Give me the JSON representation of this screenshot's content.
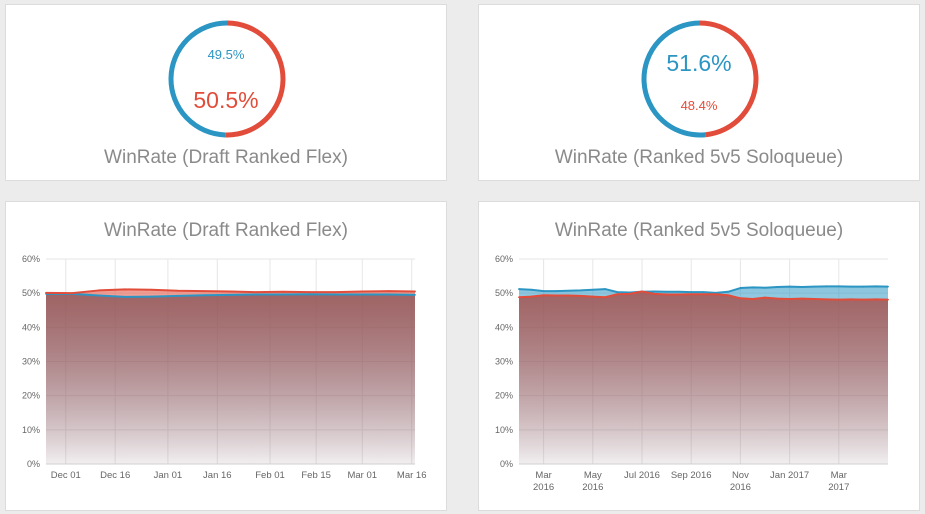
{
  "colors": {
    "blue": "#2b95c3",
    "red": "#e24c3a",
    "title": "#8a8a8a",
    "grid": "#e6e6e6",
    "axis_text": "#666666"
  },
  "donuts": [
    {
      "title": "WinRate (Draft Ranked Flex)",
      "blue_label": "49.5%",
      "red_label": "50.5%",
      "blue_value": 49.5,
      "red_value": 50.5,
      "emphasis": "red"
    },
    {
      "title": "WinRate (Ranked 5v5 Soloqueue)",
      "blue_label": "51.6%",
      "red_label": "48.4%",
      "blue_value": 51.6,
      "red_value": 48.4,
      "emphasis": "blue"
    }
  ],
  "chart_data": [
    {
      "type": "area",
      "title": "WinRate (Draft Ranked Flex)",
      "xlabel": "",
      "ylabel": "",
      "ylim": [
        0,
        60
      ],
      "y_ticks": [
        0,
        10,
        20,
        30,
        40,
        50,
        60
      ],
      "y_tick_labels": [
        "0%",
        "10%",
        "20%",
        "30%",
        "40%",
        "50%",
        "60%"
      ],
      "x_range": [
        0,
        112
      ],
      "x_ticks": [
        {
          "x": 6,
          "lines": [
            "Dec 01"
          ]
        },
        {
          "x": 21,
          "lines": [
            "Dec 16"
          ]
        },
        {
          "x": 37,
          "lines": [
            "Jan 01"
          ]
        },
        {
          "x": 52,
          "lines": [
            "Jan 16"
          ]
        },
        {
          "x": 68,
          "lines": [
            "Feb 01"
          ]
        },
        {
          "x": 82,
          "lines": [
            "Feb 15"
          ]
        },
        {
          "x": 96,
          "lines": [
            "Mar 01"
          ]
        },
        {
          "x": 111,
          "lines": [
            "Mar 16"
          ]
        }
      ],
      "grid": true,
      "legend": "none",
      "series": [
        {
          "color": "#2b95c3",
          "x": [
            0,
            8,
            16,
            24,
            32,
            40,
            48,
            56,
            64,
            72,
            80,
            88,
            96,
            104,
            112
          ],
          "values": [
            49.8,
            49.8,
            49.3,
            48.9,
            49.0,
            49.2,
            49.4,
            49.5,
            49.6,
            49.6,
            49.7,
            49.6,
            49.6,
            49.6,
            49.5
          ]
        },
        {
          "color": "#e24c3a",
          "x": [
            0,
            8,
            16,
            24,
            32,
            40,
            48,
            56,
            64,
            72,
            80,
            88,
            96,
            104,
            112
          ],
          "values": [
            50.1,
            50.0,
            50.8,
            51.1,
            51.0,
            50.7,
            50.6,
            50.5,
            50.3,
            50.4,
            50.3,
            50.3,
            50.5,
            50.6,
            50.5
          ]
        }
      ]
    },
    {
      "type": "area",
      "title": "WinRate (Ranked 5v5 Soloqueue)",
      "xlabel": "",
      "ylabel": "",
      "ylim": [
        0,
        60
      ],
      "y_ticks": [
        0,
        10,
        20,
        30,
        40,
        50,
        60
      ],
      "y_tick_labels": [
        "0%",
        "10%",
        "20%",
        "30%",
        "40%",
        "50%",
        "60%"
      ],
      "x_range": [
        0,
        15
      ],
      "x_ticks": [
        {
          "x": 1,
          "lines": [
            "Mar",
            "2016"
          ]
        },
        {
          "x": 3,
          "lines": [
            "May",
            "2016"
          ]
        },
        {
          "x": 5,
          "lines": [
            "Jul 2016"
          ]
        },
        {
          "x": 7,
          "lines": [
            "Sep 2016"
          ]
        },
        {
          "x": 9,
          "lines": [
            "Nov",
            "2016"
          ]
        },
        {
          "x": 11,
          "lines": [
            "Jan 2017"
          ]
        },
        {
          "x": 13,
          "lines": [
            "Mar",
            "2017"
          ]
        }
      ],
      "grid": true,
      "legend": "none",
      "series": [
        {
          "color": "#2b95c3",
          "x": [
            0,
            0.5,
            1,
            1.5,
            2,
            2.5,
            3,
            3.5,
            4,
            4.5,
            5,
            5.5,
            6,
            6.5,
            7,
            7.5,
            8,
            8.5,
            9,
            9.5,
            10,
            10.5,
            11,
            11.5,
            12,
            12.5,
            13,
            13.5,
            14,
            14.5,
            15
          ],
          "values": [
            51.2,
            51.0,
            50.6,
            50.6,
            50.7,
            50.8,
            51.0,
            51.2,
            50.3,
            50.2,
            50.4,
            50.5,
            50.4,
            50.4,
            50.3,
            50.3,
            50.1,
            50.4,
            51.5,
            51.7,
            51.6,
            51.8,
            51.9,
            51.8,
            51.9,
            52.0,
            52.0,
            51.9,
            51.9,
            52.0,
            51.9
          ]
        },
        {
          "color": "#e24c3a",
          "x": [
            0,
            0.5,
            1,
            1.5,
            2,
            2.5,
            3,
            3.5,
            4,
            4.5,
            5,
            5.5,
            6,
            6.5,
            7,
            7.5,
            8,
            8.5,
            9,
            9.5,
            10,
            10.5,
            11,
            11.5,
            12,
            12.5,
            13,
            13.5,
            14,
            14.5,
            15
          ],
          "values": [
            48.8,
            49.0,
            49.4,
            49.3,
            49.3,
            49.2,
            49.0,
            48.8,
            49.7,
            49.8,
            50.5,
            49.8,
            49.6,
            49.6,
            49.7,
            49.7,
            49.7,
            49.4,
            48.5,
            48.3,
            48.7,
            48.4,
            48.3,
            48.4,
            48.3,
            48.2,
            48.1,
            48.2,
            48.1,
            48.2,
            48.1
          ]
        }
      ]
    }
  ]
}
